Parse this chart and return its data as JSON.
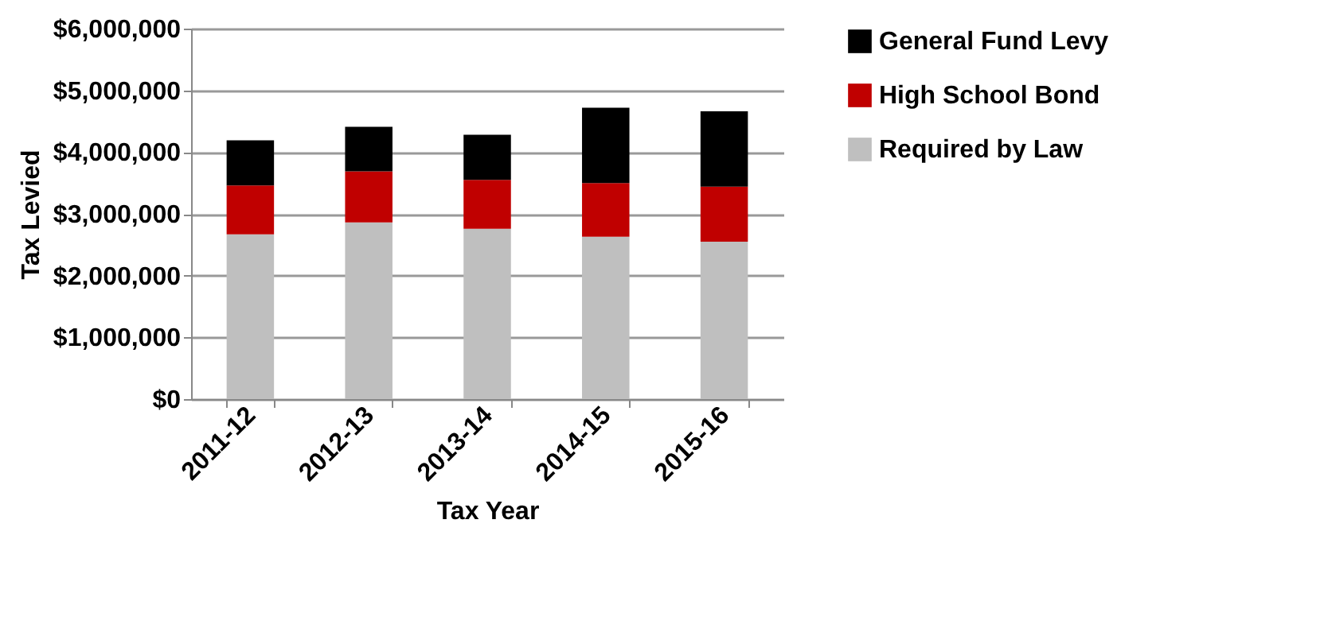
{
  "chart_data": {
    "type": "bar",
    "xlabel": "Tax Year",
    "ylabel": "Tax Levied",
    "categories": [
      "2011-12",
      "2012-13",
      "2013-14",
      "2014-15",
      "2015-16"
    ],
    "stacked": true,
    "series": [
      {
        "name": "Required by Law",
        "color": "#bfbfbf",
        "values": [
          2670000,
          2860000,
          2760000,
          2630000,
          2550000
        ]
      },
      {
        "name": "High School Bond",
        "color": "#c00000",
        "values": [
          790000,
          830000,
          790000,
          870000,
          890000
        ]
      },
      {
        "name": "General Fund Levy",
        "color": "#000000",
        "values": [
          730000,
          720000,
          730000,
          1220000,
          1220000
        ]
      }
    ],
    "ylim": [
      0,
      6000000
    ],
    "yticks": [
      {
        "value": 0,
        "label": "$0"
      },
      {
        "value": 1000000,
        "label": "$1,000,000"
      },
      {
        "value": 2000000,
        "label": "$2,000,000"
      },
      {
        "value": 3000000,
        "label": "$3,000,000"
      },
      {
        "value": 4000000,
        "label": "$4,000,000"
      },
      {
        "value": 5000000,
        "label": "$5,000,000"
      },
      {
        "value": 6000000,
        "label": "$6,000,000"
      }
    ],
    "grid": "y",
    "legend": "right"
  }
}
